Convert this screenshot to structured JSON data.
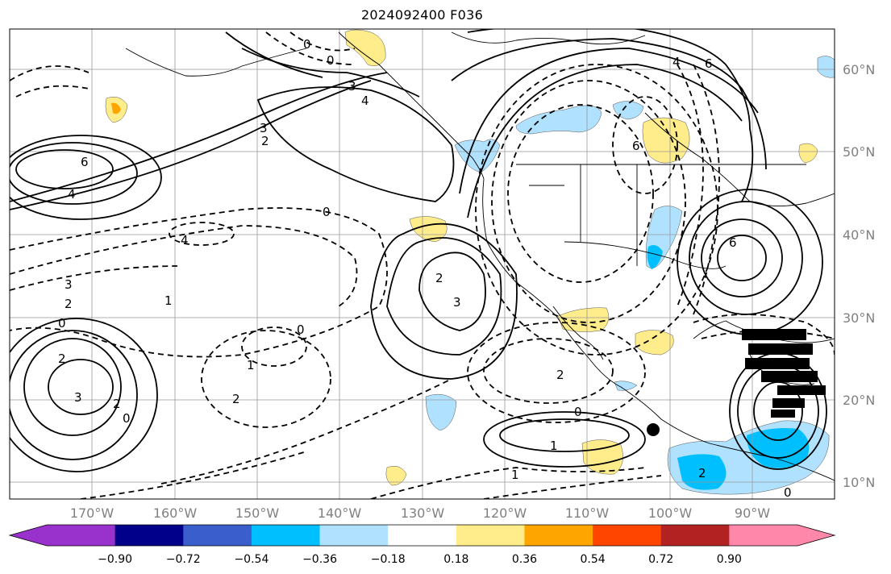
{
  "title": "2024092400 F036",
  "lat_labels": [
    "60°N",
    "50°N",
    "40°N",
    "30°N",
    "20°N",
    "10°N"
  ],
  "lon_labels": [
    "170°W",
    "160°W",
    "150°W",
    "140°W",
    "130°W",
    "120°W",
    "110°W",
    "100°W",
    "90°W"
  ],
  "colorbar": {
    "labels": [
      "−0.90",
      "−0.72",
      "−0.54",
      "−0.36",
      "−0.18",
      "0.18",
      "0.36",
      "0.54",
      "0.72",
      "0.90"
    ],
    "colors": [
      "#9932CC",
      "#00008B",
      "#3A5FCD",
      "#00BFFF",
      "#B0E2FF",
      "#FFFFFF",
      "#FFEC8B",
      "#FFA500",
      "#FF4500",
      "#B22222",
      "#FF88AA"
    ]
  },
  "contour_labels": [
    {
      "text": "0",
      "id": "c1"
    },
    {
      "text": "0",
      "id": "c2"
    },
    {
      "text": "3",
      "id": "c3"
    },
    {
      "text": "4",
      "id": "c4"
    },
    {
      "text": "6",
      "id": "c5"
    },
    {
      "text": "4",
      "id": "c6"
    },
    {
      "text": "3",
      "id": "c7"
    },
    {
      "text": "2",
      "id": "c8"
    },
    {
      "text": "0",
      "id": "c9"
    },
    {
      "text": "4",
      "id": "c10"
    },
    {
      "text": "3",
      "id": "c11"
    },
    {
      "text": "2",
      "id": "c12"
    },
    {
      "text": "1",
      "id": "c13"
    },
    {
      "text": "0",
      "id": "c14"
    },
    {
      "text": "2",
      "id": "c15"
    },
    {
      "text": "3",
      "id": "c16"
    },
    {
      "text": "2",
      "id": "c17"
    },
    {
      "text": "0",
      "id": "c18"
    },
    {
      "text": "1",
      "id": "c19"
    },
    {
      "text": "2",
      "id": "c20"
    },
    {
      "text": "0",
      "id": "c21"
    },
    {
      "text": "1",
      "id": "c22"
    },
    {
      "text": "1",
      "id": "c23"
    },
    {
      "text": "2",
      "id": "c24"
    },
    {
      "text": "6",
      "id": "c25"
    },
    {
      "text": "6",
      "id": "c26"
    },
    {
      "text": "3",
      "id": "c27"
    },
    {
      "text": "2",
      "id": "c28"
    },
    {
      "text": "6",
      "id": "c29"
    },
    {
      "text": "4",
      "id": "c30"
    },
    {
      "text": "0",
      "id": "c31"
    },
    {
      "text": "2",
      "id": "c32"
    },
    {
      "text": "0",
      "id": "c33"
    }
  ]
}
